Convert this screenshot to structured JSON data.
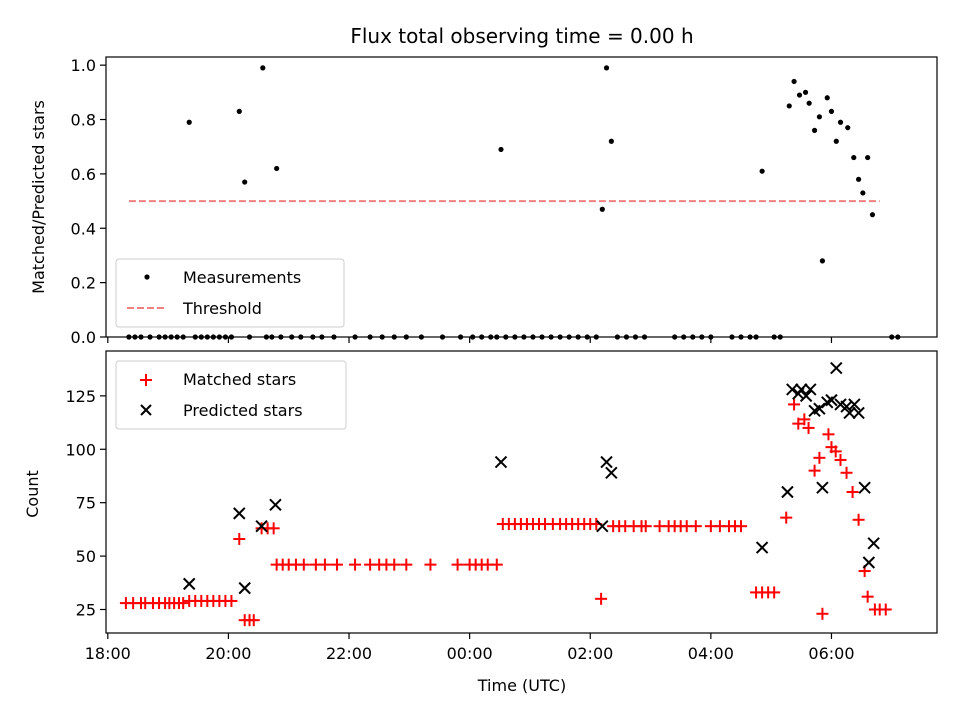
{
  "figure": {
    "title": "Flux total observing time = 0.00 h",
    "xlabel": "Time (UTC)"
  },
  "colors": {
    "measurement": "#000000",
    "threshold": "#f08080",
    "matched": "#ff0000",
    "predicted": "#000000"
  },
  "chart_data": [
    {
      "type": "scatter",
      "ylabel": "Matched/Predicted stars",
      "ylim": [
        0,
        1.03
      ],
      "xlim_hours": [
        17.97,
        31.75
      ],
      "yticks": [
        0.0,
        0.2,
        0.4,
        0.6,
        0.8,
        1.0
      ],
      "ytick_labels": [
        "0.0",
        "0.2",
        "0.4",
        "0.6",
        "0.8",
        "1.0"
      ],
      "legend": {
        "placement": "lower-left",
        "entries": [
          "Measurements",
          "Threshold"
        ]
      },
      "series": [
        {
          "name": "Measurements",
          "marker": "dot",
          "points": [
            [
              19.35,
              0.79
            ],
            [
              20.18,
              0.83
            ],
            [
              20.27,
              0.57
            ],
            [
              20.57,
              0.99
            ],
            [
              20.8,
              0.62
            ],
            [
              24.52,
              0.69
            ],
            [
              26.2,
              0.47
            ],
            [
              26.27,
              0.99
            ],
            [
              26.35,
              0.72
            ],
            [
              28.85,
              0.61
            ],
            [
              29.3,
              0.85
            ],
            [
              29.38,
              0.94
            ],
            [
              29.47,
              0.89
            ],
            [
              29.57,
              0.9
            ],
            [
              29.63,
              0.86
            ],
            [
              29.72,
              0.76
            ],
            [
              29.8,
              0.81
            ],
            [
              29.85,
              0.28
            ],
            [
              29.93,
              0.88
            ],
            [
              30.0,
              0.83
            ],
            [
              30.08,
              0.72
            ],
            [
              30.15,
              0.79
            ],
            [
              30.27,
              0.77
            ],
            [
              30.37,
              0.66
            ],
            [
              30.45,
              0.58
            ],
            [
              30.52,
              0.53
            ],
            [
              30.6,
              0.66
            ],
            [
              30.68,
              0.45
            ],
            [
              18.35,
              0.0
            ],
            [
              18.45,
              0.0
            ],
            [
              18.55,
              0.0
            ],
            [
              18.7,
              0.0
            ],
            [
              18.85,
              0.0
            ],
            [
              18.95,
              0.0
            ],
            [
              19.05,
              0.0
            ],
            [
              19.15,
              0.0
            ],
            [
              19.25,
              0.0
            ],
            [
              19.45,
              0.0
            ],
            [
              19.55,
              0.0
            ],
            [
              19.65,
              0.0
            ],
            [
              19.75,
              0.0
            ],
            [
              19.85,
              0.0
            ],
            [
              19.95,
              0.0
            ],
            [
              20.05,
              0.0
            ],
            [
              20.35,
              0.0
            ],
            [
              20.63,
              0.0
            ],
            [
              20.72,
              0.0
            ],
            [
              20.87,
              0.0
            ],
            [
              21.05,
              0.0
            ],
            [
              21.2,
              0.0
            ],
            [
              21.4,
              0.0
            ],
            [
              21.55,
              0.0
            ],
            [
              21.75,
              0.0
            ],
            [
              22.1,
              0.0
            ],
            [
              22.35,
              0.0
            ],
            [
              22.55,
              0.0
            ],
            [
              22.75,
              0.0
            ],
            [
              22.95,
              0.0
            ],
            [
              23.2,
              0.0
            ],
            [
              23.55,
              0.0
            ],
            [
              23.85,
              0.0
            ],
            [
              24.05,
              0.0
            ],
            [
              24.2,
              0.0
            ],
            [
              24.35,
              0.0
            ],
            [
              24.45,
              0.0
            ],
            [
              24.6,
              0.0
            ],
            [
              24.75,
              0.0
            ],
            [
              24.9,
              0.0
            ],
            [
              25.05,
              0.0
            ],
            [
              25.2,
              0.0
            ],
            [
              25.35,
              0.0
            ],
            [
              25.5,
              0.0
            ],
            [
              25.65,
              0.0
            ],
            [
              25.8,
              0.0
            ],
            [
              25.95,
              0.0
            ],
            [
              26.1,
              0.0
            ],
            [
              26.45,
              0.0
            ],
            [
              26.6,
              0.0
            ],
            [
              26.75,
              0.0
            ],
            [
              26.9,
              0.0
            ],
            [
              27.4,
              0.0
            ],
            [
              27.55,
              0.0
            ],
            [
              27.7,
              0.0
            ],
            [
              27.85,
              0.0
            ],
            [
              28.0,
              0.0
            ],
            [
              28.35,
              0.0
            ],
            [
              28.5,
              0.0
            ],
            [
              28.65,
              0.0
            ],
            [
              28.75,
              0.0
            ],
            [
              29.05,
              0.0
            ],
            [
              29.15,
              0.0
            ],
            [
              31.0,
              0.0
            ],
            [
              31.1,
              0.0
            ]
          ]
        },
        {
          "name": "Threshold",
          "marker": "dashed-line",
          "points": [
            [
              18.35,
              0.5
            ],
            [
              30.8,
              0.5
            ]
          ]
        }
      ]
    },
    {
      "type": "scatter",
      "ylabel": "Count",
      "ylim": [
        14,
        146
      ],
      "xlim_hours": [
        17.97,
        31.75
      ],
      "yticks": [
        25,
        50,
        75,
        100,
        125
      ],
      "ytick_labels": [
        "25",
        "50",
        "75",
        "100",
        "125"
      ],
      "xticks_hours": [
        18,
        20,
        22,
        24,
        26,
        28,
        30
      ],
      "xtick_labels": [
        "18:00",
        "20:00",
        "22:00",
        "00:00",
        "02:00",
        "04:00",
        "06:00"
      ],
      "legend": {
        "placement": "upper-left",
        "entries": [
          "Matched stars",
          "Predicted stars"
        ]
      },
      "series": [
        {
          "name": "Matched stars",
          "marker": "plus",
          "points": [
            [
              18.3,
              28
            ],
            [
              18.42,
              28
            ],
            [
              18.55,
              28
            ],
            [
              18.62,
              28
            ],
            [
              18.75,
              28
            ],
            [
              18.85,
              28
            ],
            [
              18.95,
              28
            ],
            [
              19.02,
              28
            ],
            [
              19.1,
              28
            ],
            [
              19.18,
              28
            ],
            [
              19.25,
              28
            ],
            [
              19.35,
              29
            ],
            [
              19.45,
              29
            ],
            [
              19.55,
              29
            ],
            [
              19.65,
              29
            ],
            [
              19.75,
              29
            ],
            [
              19.85,
              29
            ],
            [
              19.95,
              29
            ],
            [
              20.05,
              29
            ],
            [
              20.18,
              58
            ],
            [
              20.27,
              20
            ],
            [
              20.35,
              20
            ],
            [
              20.42,
              20
            ],
            [
              20.55,
              63
            ],
            [
              20.65,
              63
            ],
            [
              20.75,
              63
            ],
            [
              20.8,
              46
            ],
            [
              20.9,
              46
            ],
            [
              21.0,
              46
            ],
            [
              21.12,
              46
            ],
            [
              21.25,
              46
            ],
            [
              21.45,
              46
            ],
            [
              21.6,
              46
            ],
            [
              21.8,
              46
            ],
            [
              22.1,
              46
            ],
            [
              22.35,
              46
            ],
            [
              22.5,
              46
            ],
            [
              22.62,
              46
            ],
            [
              22.75,
              46
            ],
            [
              22.95,
              46
            ],
            [
              23.35,
              46
            ],
            [
              23.8,
              46
            ],
            [
              24.0,
              46
            ],
            [
              24.1,
              46
            ],
            [
              24.2,
              46
            ],
            [
              24.3,
              46
            ],
            [
              24.45,
              46
            ],
            [
              24.55,
              65
            ],
            [
              24.65,
              65
            ],
            [
              24.75,
              65
            ],
            [
              24.85,
              65
            ],
            [
              24.95,
              65
            ],
            [
              25.05,
              65
            ],
            [
              25.15,
              65
            ],
            [
              25.25,
              65
            ],
            [
              25.38,
              65
            ],
            [
              25.5,
              65
            ],
            [
              25.6,
              65
            ],
            [
              25.7,
              65
            ],
            [
              25.8,
              65
            ],
            [
              25.9,
              65
            ],
            [
              26.0,
              65
            ],
            [
              26.1,
              65
            ],
            [
              26.18,
              30
            ],
            [
              26.38,
              64
            ],
            [
              26.48,
              64
            ],
            [
              26.58,
              64
            ],
            [
              26.72,
              64
            ],
            [
              26.85,
              64
            ],
            [
              26.92,
              64
            ],
            [
              27.15,
              64
            ],
            [
              27.3,
              64
            ],
            [
              27.4,
              64
            ],
            [
              27.5,
              64
            ],
            [
              27.6,
              64
            ],
            [
              27.75,
              64
            ],
            [
              28.0,
              64
            ],
            [
              28.15,
              64
            ],
            [
              28.3,
              64
            ],
            [
              28.4,
              64
            ],
            [
              28.5,
              64
            ],
            [
              28.75,
              33
            ],
            [
              28.85,
              33
            ],
            [
              28.95,
              33
            ],
            [
              29.05,
              33
            ],
            [
              29.25,
              68
            ],
            [
              29.38,
              121
            ],
            [
              29.45,
              112
            ],
            [
              29.55,
              114
            ],
            [
              29.62,
              110
            ],
            [
              29.72,
              90
            ],
            [
              29.8,
              96
            ],
            [
              29.85,
              23
            ],
            [
              29.95,
              107
            ],
            [
              30.0,
              101
            ],
            [
              30.07,
              99
            ],
            [
              30.15,
              95
            ],
            [
              30.25,
              89
            ],
            [
              30.35,
              80
            ],
            [
              30.45,
              67
            ],
            [
              30.55,
              43
            ],
            [
              30.6,
              31
            ],
            [
              30.72,
              25
            ],
            [
              30.8,
              25
            ],
            [
              30.9,
              25
            ]
          ]
        },
        {
          "name": "Predicted stars",
          "marker": "x",
          "points": [
            [
              19.35,
              37
            ],
            [
              20.18,
              70
            ],
            [
              20.27,
              35
            ],
            [
              20.55,
              64
            ],
            [
              20.78,
              74
            ],
            [
              24.52,
              94
            ],
            [
              26.2,
              64
            ],
            [
              26.27,
              94
            ],
            [
              26.35,
              89
            ],
            [
              28.85,
              54
            ],
            [
              29.27,
              80
            ],
            [
              29.35,
              128
            ],
            [
              29.45,
              126
            ],
            [
              29.5,
              128
            ],
            [
              29.58,
              125
            ],
            [
              29.65,
              128
            ],
            [
              29.72,
              118
            ],
            [
              29.8,
              119
            ],
            [
              29.85,
              82
            ],
            [
              29.93,
              122
            ],
            [
              30.0,
              123
            ],
            [
              30.08,
              138
            ],
            [
              30.15,
              121
            ],
            [
              30.25,
              120
            ],
            [
              30.3,
              117
            ],
            [
              30.38,
              121
            ],
            [
              30.45,
              117
            ],
            [
              30.55,
              82
            ],
            [
              30.62,
              47
            ],
            [
              30.7,
              56
            ]
          ]
        }
      ]
    }
  ]
}
